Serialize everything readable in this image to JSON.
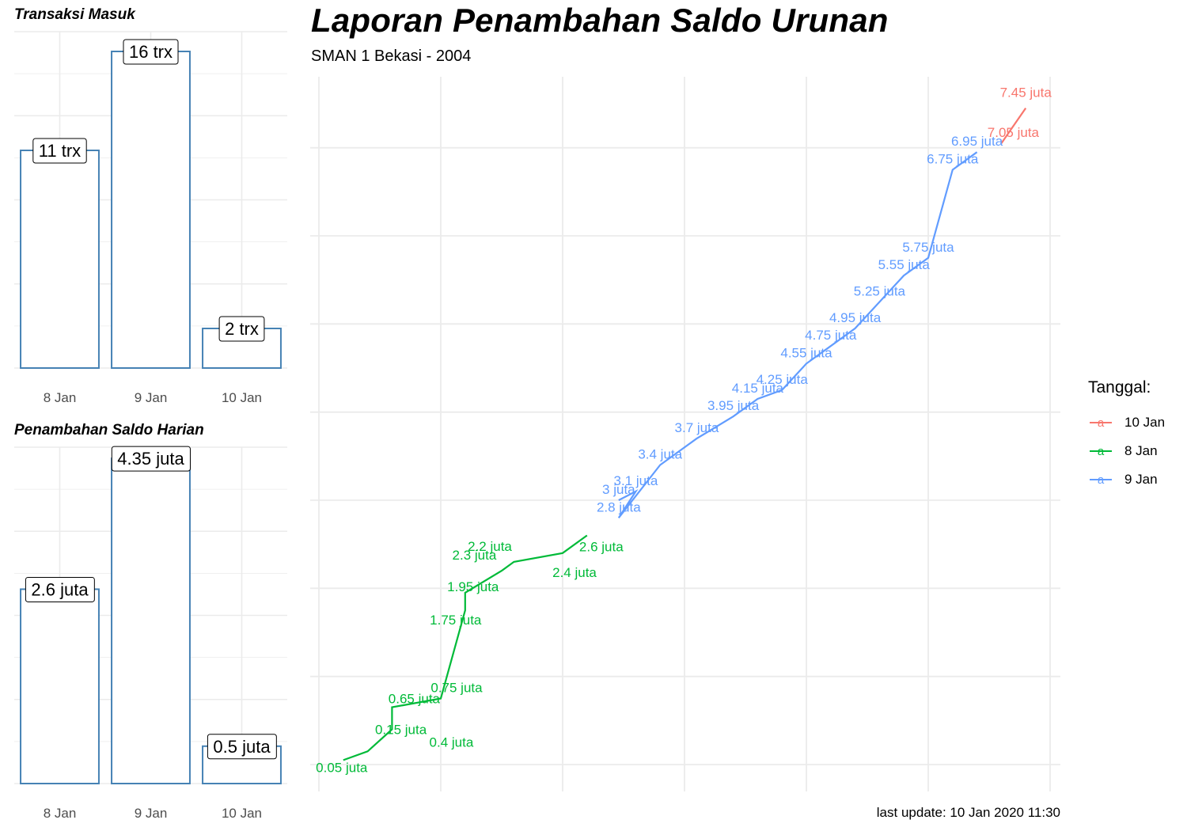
{
  "chart_data": [
    {
      "type": "bar",
      "title": "Transaksi Masuk",
      "categories": [
        "8 Jan",
        "9 Jan",
        "10 Jan"
      ],
      "values": [
        11,
        16,
        2
      ],
      "labels": [
        "11 trx",
        "16 trx",
        "2 trx"
      ],
      "ylim": [
        0,
        17
      ],
      "bar_color": "#4682B4",
      "grid": true
    },
    {
      "type": "bar",
      "title": "Penambahan Saldo Harian",
      "categories": [
        "8 Jan",
        "9 Jan",
        "10 Jan"
      ],
      "values": [
        2.6,
        4.35,
        0.5
      ],
      "labels": [
        "2.6 juta",
        "4.35 juta",
        "0.5 juta"
      ],
      "ylim": [
        0,
        4.5
      ],
      "bar_color": "#4682B4",
      "grid": true
    },
    {
      "type": "line",
      "title": "Laporan Penambahan Saldo Urunan",
      "subtitle": "SMAN 1 Bekasi - 2004",
      "caption": "last update: 10 Jan 2020 11:30",
      "legend_title": "Tanggal:",
      "legend_position": "right",
      "grid": true,
      "ylim": [
        0,
        7.5
      ],
      "series": [
        {
          "name": "10 Jan",
          "color": "#F8766D",
          "points": [
            {
              "x": 28.0,
              "y": 7.05,
              "label": "7.05 juta"
            },
            {
              "x": 29.0,
              "y": 7.45,
              "label": "7.45 juta"
            }
          ]
        },
        {
          "name": "8 Jan",
          "color": "#00BA38",
          "points": [
            {
              "x": 1.0,
              "y": 0.05,
              "label": "0.05 juta"
            },
            {
              "x": 2.0,
              "y": 0.15,
              "label": "0.15 juta"
            },
            {
              "x": 3.0,
              "y": 0.4,
              "label": "0.4 juta"
            },
            {
              "x": 3.0,
              "y": 0.65,
              "label": "0.65 juta"
            },
            {
              "x": 5.0,
              "y": 0.75,
              "label": "0.75 juta"
            },
            {
              "x": 6.0,
              "y": 1.75,
              "label": "1.75 juta"
            },
            {
              "x": 6.0,
              "y": 1.95,
              "label": "1.95 juta"
            },
            {
              "x": 7.5,
              "y": 2.2,
              "label": "2.2 juta"
            },
            {
              "x": 8.0,
              "y": 2.3,
              "label": "2.3 juta"
            },
            {
              "x": 10.0,
              "y": 2.4,
              "label": "2.4 juta"
            },
            {
              "x": 11.0,
              "y": 2.6,
              "label": "2.6 juta"
            }
          ]
        },
        {
          "name": "9 Jan",
          "color": "#619CFF",
          "points": [
            {
              "x": 12.3,
              "y": 3.0,
              "label": "3 juta"
            },
            {
              "x": 13.0,
              "y": 3.1,
              "label": "3.1 juta"
            },
            {
              "x": 12.3,
              "y": 2.8,
              "label": "2.8 juta"
            },
            {
              "x": 14.0,
              "y": 3.4,
              "label": "3.4 juta"
            },
            {
              "x": 15.5,
              "y": 3.7,
              "label": "3.7 juta"
            },
            {
              "x": 17.0,
              "y": 3.95,
              "label": "3.95 juta"
            },
            {
              "x": 18.0,
              "y": 4.15,
              "label": "4.15 juta"
            },
            {
              "x": 19.0,
              "y": 4.25,
              "label": "4.25 juta"
            },
            {
              "x": 20.0,
              "y": 4.55,
              "label": "4.55 juta"
            },
            {
              "x": 21.0,
              "y": 4.75,
              "label": "4.75 juta"
            },
            {
              "x": 22.0,
              "y": 4.95,
              "label": "4.95 juta"
            },
            {
              "x": 23.0,
              "y": 5.25,
              "label": "5.25 juta"
            },
            {
              "x": 24.0,
              "y": 5.55,
              "label": "5.55 juta"
            },
            {
              "x": 25.0,
              "y": 5.75,
              "label": "5.75 juta"
            },
            {
              "x": 26.0,
              "y": 6.75,
              "label": "6.75 juta"
            },
            {
              "x": 27.0,
              "y": 6.95,
              "label": "6.95 juta"
            }
          ]
        }
      ]
    }
  ]
}
